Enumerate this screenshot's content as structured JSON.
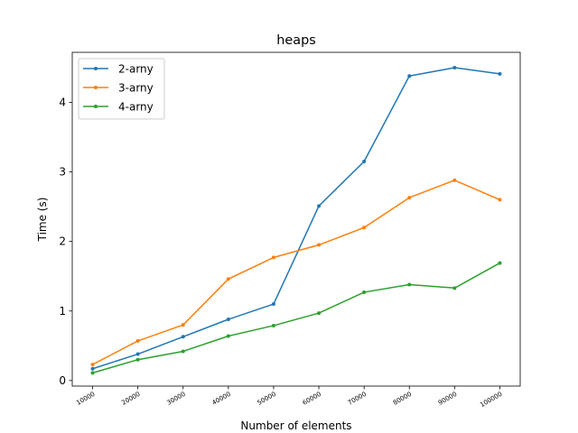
{
  "chart_data": {
    "type": "line",
    "title": "heaps",
    "xlabel": "Number of elements",
    "ylabel": "Time (s)",
    "x": [
      10000,
      20000,
      30000,
      40000,
      50000,
      60000,
      70000,
      80000,
      90000,
      100000
    ],
    "x_tick_labels": [
      "10000",
      "20000",
      "30000",
      "40000",
      "50000",
      "60000",
      "70000",
      "80000",
      "90000",
      "100000"
    ],
    "y_ticks": [
      0,
      1,
      2,
      3,
      4
    ],
    "y_tick_labels": [
      "0",
      "1",
      "2",
      "3",
      "4"
    ],
    "xlim": [
      5500,
      104500
    ],
    "ylim": [
      -0.08,
      4.72
    ],
    "grid": false,
    "legend_position": "top-left",
    "series": [
      {
        "name": "2-arny",
        "color": "#1f77b4",
        "values": [
          0.17,
          0.38,
          0.63,
          0.88,
          1.1,
          2.51,
          3.15,
          4.38,
          4.5,
          4.41
        ]
      },
      {
        "name": "3-arny",
        "color": "#ff7f0e",
        "values": [
          0.23,
          0.57,
          0.8,
          1.46,
          1.77,
          1.95,
          2.2,
          2.63,
          2.88,
          2.6
        ]
      },
      {
        "name": "4-arny",
        "color": "#2ca02c",
        "values": [
          0.11,
          0.3,
          0.42,
          0.64,
          0.79,
          0.97,
          1.27,
          1.38,
          1.33,
          1.69
        ]
      }
    ]
  }
}
